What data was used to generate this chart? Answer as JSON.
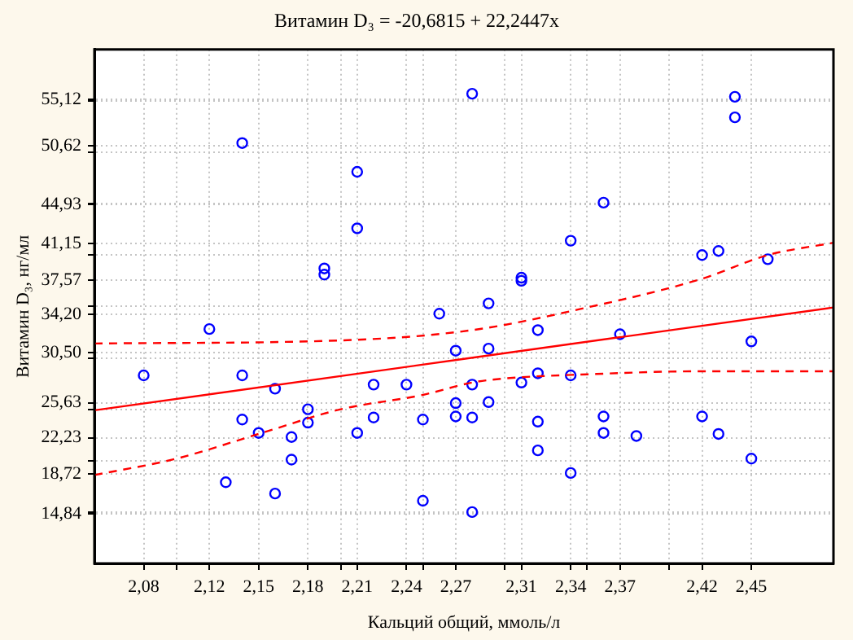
{
  "chart_data": {
    "type": "scatter",
    "title": "Витамин D₃ = -20,6815 + 22,2447x",
    "xlabel": "Кальций общий, ммоль/л",
    "ylabel": "Витамин D₃, нг/мл",
    "xlim": [
      2.05,
      2.5
    ],
    "xticks": [
      {
        "value": 2.08,
        "label": "2,08"
      },
      {
        "value": 2.1,
        "label": null
      },
      {
        "value": 2.12,
        "label": "2,12"
      },
      {
        "value": 2.15,
        "label": "2,15"
      },
      {
        "value": 2.18,
        "label": "2,18"
      },
      {
        "value": 2.2,
        "label": null
      },
      {
        "value": 2.21,
        "label": "2,21"
      },
      {
        "value": 2.24,
        "label": "2,24"
      },
      {
        "value": 2.25,
        "label": null
      },
      {
        "value": 2.27,
        "label": "2,27"
      },
      {
        "value": 2.3,
        "label": null
      },
      {
        "value": 2.31,
        "label": "2,31"
      },
      {
        "value": 2.34,
        "label": "2,34"
      },
      {
        "value": 2.35,
        "label": null
      },
      {
        "value": 2.37,
        "label": "2,37"
      },
      {
        "value": 2.4,
        "label": null
      },
      {
        "value": 2.42,
        "label": "2,42"
      },
      {
        "value": 2.45,
        "label": "2,45"
      }
    ],
    "ylim": [
      10,
      60
    ],
    "yticks": [
      {
        "value": 14.84,
        "label": "14,84"
      },
      {
        "value": 15,
        "label": null
      },
      {
        "value": 18.72,
        "label": "18,72"
      },
      {
        "value": 20,
        "label": null
      },
      {
        "value": 22.23,
        "label": "22,23"
      },
      {
        "value": 25,
        "label": null
      },
      {
        "value": 25.63,
        "label": "25,63"
      },
      {
        "value": 30,
        "label": null
      },
      {
        "value": 30.5,
        "label": "30,50"
      },
      {
        "value": 34.2,
        "label": "34,20"
      },
      {
        "value": 35,
        "label": null
      },
      {
        "value": 37.57,
        "label": "37,57"
      },
      {
        "value": 40,
        "label": null
      },
      {
        "value": 41.15,
        "label": "41,15"
      },
      {
        "value": 44.93,
        "label": "44,93"
      },
      {
        "value": 45,
        "label": null
      },
      {
        "value": 50,
        "label": null
      },
      {
        "value": 50.62,
        "label": "50,62"
      },
      {
        "value": 55,
        "label": null
      },
      {
        "value": 55.12,
        "label": "55,12"
      }
    ],
    "grid": true,
    "series": [
      {
        "color": "#0000ff",
        "marker": "circle",
        "x": [
          2.14,
          2.21,
          2.21,
          2.19,
          2.19,
          2.26,
          2.12,
          2.27,
          2.08,
          2.14,
          2.16,
          2.22,
          2.24,
          2.18,
          2.27,
          2.27,
          2.14,
          2.22,
          2.25,
          2.18,
          2.15,
          2.21,
          2.17,
          2.17,
          2.13,
          2.16,
          2.25,
          2.28,
          2.44,
          2.44,
          2.36,
          2.34,
          2.42,
          2.43,
          2.46,
          2.31,
          2.31,
          2.29,
          2.32,
          2.37,
          2.45,
          2.29,
          2.32,
          2.31,
          2.28,
          2.34,
          2.28,
          2.29,
          2.32,
          2.36,
          2.36,
          2.38,
          2.42,
          2.43,
          2.32,
          2.34,
          2.45,
          2.28
        ],
        "values": [
          50.9,
          48.1,
          42.6,
          38.7,
          38.1,
          34.3,
          32.8,
          30.7,
          28.3,
          28.3,
          27.0,
          27.4,
          27.4,
          25.0,
          25.6,
          24.3,
          24.0,
          24.2,
          24.0,
          23.7,
          22.7,
          22.7,
          22.3,
          20.1,
          17.9,
          16.8,
          16.1,
          55.7,
          55.4,
          53.4,
          45.1,
          41.4,
          40.0,
          40.4,
          39.6,
          37.8,
          37.5,
          35.3,
          32.7,
          32.3,
          31.6,
          30.9,
          28.5,
          27.6,
          27.4,
          28.3,
          24.2,
          25.7,
          23.8,
          24.3,
          22.7,
          22.4,
          24.3,
          22.6,
          21.0,
          18.8,
          20.2,
          15.0
        ]
      },
      {
        "type": "line",
        "color": "#ff0000",
        "line_style": "solid",
        "marker": "none",
        "x": [
          2.05,
          2.5
        ],
        "values": [
          24.9,
          34.9
        ]
      },
      {
        "type": "line",
        "color": "#ff0000",
        "line_style": "dashed",
        "marker": "none",
        "x": [
          2.05,
          2.2,
          2.28,
          2.35,
          2.42,
          2.46,
          2.5
        ],
        "values": [
          31.4,
          31.7,
          32.7,
          34.9,
          37.7,
          40.0,
          41.2
        ]
      },
      {
        "type": "line",
        "color": "#ff0000",
        "line_style": "dashed",
        "marker": "none",
        "x": [
          2.05,
          2.1,
          2.15,
          2.2,
          2.25,
          2.28,
          2.3,
          2.35,
          2.42,
          2.5
        ],
        "values": [
          18.6,
          20.2,
          22.6,
          25.0,
          26.4,
          27.6,
          28.0,
          28.4,
          28.7,
          28.7
        ]
      }
    ]
  }
}
